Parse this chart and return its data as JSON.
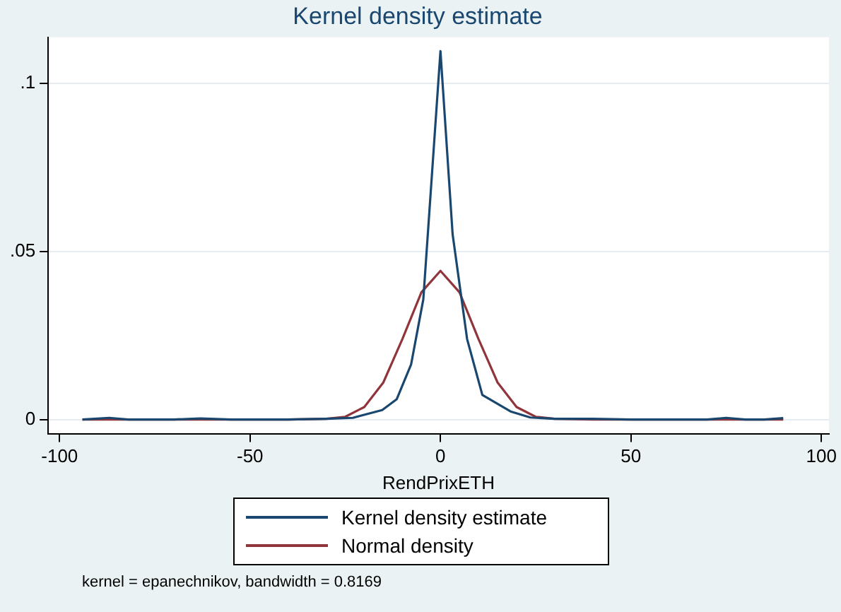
{
  "chart_data": {
    "type": "line",
    "title": "Kernel density estimate",
    "xlabel": "RendPrixETH",
    "annotations": [
      "kernel = epanechnikov, bandwidth = 0.8169"
    ],
    "xlim": [
      -103,
      102
    ],
    "xticks": [
      -100,
      -50,
      0,
      50,
      100
    ],
    "ylim": [
      -0.0042,
      0.1136
    ],
    "yticks": [
      0,
      {
        "value": 0.05,
        "label": ".05"
      },
      {
        "value": 0.1,
        "label": ".1"
      }
    ],
    "grid": "y",
    "legend": "bottom",
    "marker": "none",
    "line_style": "solid",
    "series": [
      {
        "name": "Kernel density estimate",
        "color": "#1a476f",
        "x": [
          -94,
          -87,
          -82,
          -70,
          -63,
          -55,
          -40,
          -30,
          -23,
          -15.3,
          -11.5,
          -7.7,
          -4.5,
          0,
          3.2,
          7,
          11,
          18.4,
          23.6,
          30,
          40,
          50,
          60,
          70,
          75,
          80,
          85,
          90
        ],
        "values": [
          0,
          0.0005,
          0,
          0,
          0.0003,
          0,
          0,
          0.0002,
          0.0005,
          0.0028,
          0.006,
          0.0164,
          0.0357,
          0.1095,
          0.055,
          0.0239,
          0.0073,
          0.0024,
          0.0006,
          0.0002,
          0.0002,
          0,
          0,
          0,
          0.0005,
          0,
          0,
          0.0004
        ]
      },
      {
        "name": "Normal density",
        "color": "#90353b",
        "x": [
          -94,
          -60,
          -40,
          -30,
          -25,
          -20,
          -15,
          -10,
          -5,
          0,
          5,
          10,
          15,
          20,
          25,
          30,
          40,
          60,
          90
        ],
        "values": [
          0,
          0,
          0,
          0.0002,
          0.0008,
          0.0037,
          0.011,
          0.0239,
          0.0378,
          0.0442,
          0.0378,
          0.0239,
          0.011,
          0.0037,
          0.0008,
          0.0002,
          0,
          0,
          0
        ]
      }
    ]
  }
}
